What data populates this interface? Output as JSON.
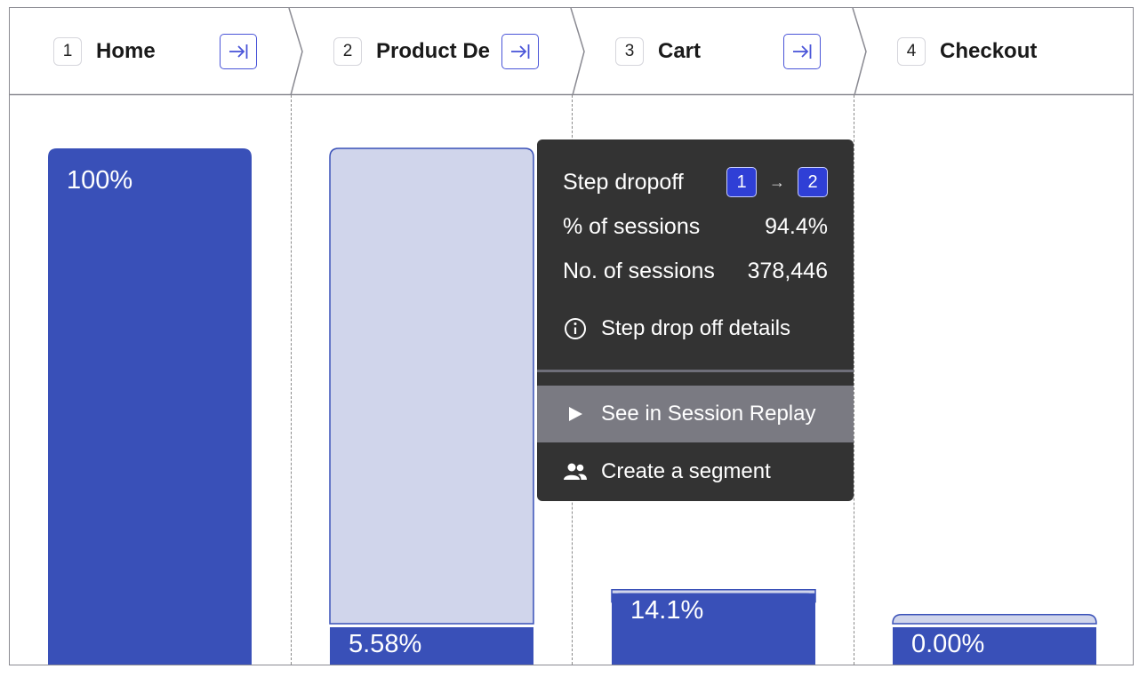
{
  "chart_data": {
    "type": "bar",
    "title": "",
    "xlabel": "",
    "ylabel": "",
    "ylim": [
      0,
      100
    ],
    "categories": [
      "Home",
      "Product Details",
      "Cart",
      "Checkout"
    ],
    "step_numbers": [
      "1",
      "2",
      "3",
      "4"
    ],
    "step_labels": [
      "Home",
      "Product De",
      "Cart",
      "Checkout"
    ],
    "values": [
      100,
      5.58,
      14.1,
      0.0
    ],
    "value_labels": [
      "100%",
      "5.58%",
      "14.1%",
      "0.00%"
    ],
    "dropoff_ghost_values": [
      null,
      100,
      14,
      10
    ],
    "colors": {
      "conversion": "#3950b8",
      "dropoff": "#d0d5eb",
      "dropoff_hover_border": "#3950b8",
      "accent": "#4a55d8"
    }
  },
  "tooltip": {
    "title": "Step dropoff",
    "from_step": "1",
    "arrow": "→",
    "to_step": "2",
    "rows": [
      {
        "label": "% of sessions",
        "value": "94.4%"
      },
      {
        "label": "No. of sessions",
        "value": "378,446"
      }
    ],
    "details_link": {
      "icon": "info-icon",
      "label": "Step drop off details"
    },
    "menu": [
      {
        "icon": "play-icon",
        "label": "See in Session Replay",
        "highlighted": true
      },
      {
        "icon": "users-icon",
        "label": "Create a segment",
        "highlighted": false
      }
    ]
  }
}
